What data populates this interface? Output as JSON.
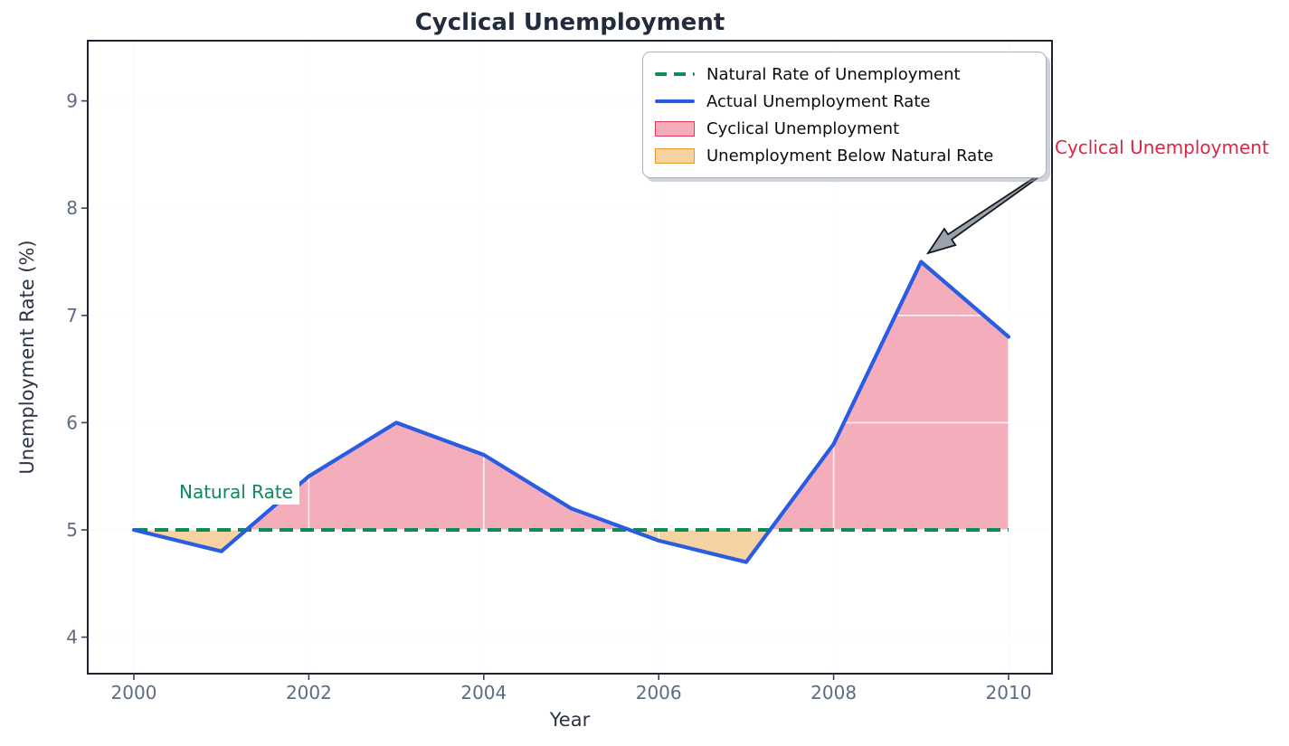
{
  "title": "Cyclical Unemployment",
  "chart_data": {
    "type": "line",
    "x": [
      2000,
      2001,
      2002,
      2003,
      2004,
      2005,
      2006,
      2007,
      2008,
      2009,
      2010
    ],
    "series": [
      {
        "name": "Natural Rate of Unemployment",
        "values": [
          5.0,
          5.0,
          5.0,
          5.0,
          5.0,
          5.0,
          5.0,
          5.0,
          5.0,
          5.0,
          5.0
        ],
        "style": "dashed",
        "color": "#0e8a57"
      },
      {
        "name": "Actual Unemployment Rate",
        "values": [
          5.0,
          4.8,
          5.5,
          6.0,
          5.7,
          5.2,
          4.9,
          4.7,
          5.8,
          7.5,
          6.8
        ],
        "style": "solid",
        "color": "#2a5ce2"
      }
    ],
    "natural_rate": 5.0,
    "xlabel": "Year",
    "ylabel": "Unemployment Rate (%)",
    "xticks": [
      2000,
      2002,
      2004,
      2006,
      2008,
      2010
    ],
    "yticks": [
      4,
      5,
      6,
      7,
      8,
      9
    ],
    "xlim": [
      1999.47,
      2010.5
    ],
    "ylim": [
      3.66,
      9.56
    ],
    "grid": true,
    "legend_position": "upper right",
    "fill_regions": [
      {
        "name": "Cyclical Unemployment",
        "condition": "actual > natural",
        "fill": "rgba(220,20,60,0.35)"
      },
      {
        "name": "Unemployment Below Natural Rate",
        "condition": "actual < natural",
        "fill": "rgba(230,142,23,0.40)"
      }
    ]
  },
  "legend": {
    "items": [
      {
        "label": "Natural Rate of Unemployment",
        "swatch": "green-dashed-line"
      },
      {
        "label": "Actual Unemployment Rate",
        "swatch": "blue-solid-line"
      },
      {
        "label": "Cyclical Unemployment",
        "swatch": "pink-patch"
      },
      {
        "label": "Unemployment Below Natural Rate",
        "swatch": "orange-patch"
      }
    ]
  },
  "annotations": {
    "cyclical": {
      "text": "Cyclical Unemployment",
      "color": "#dc2646",
      "arrow_target_year": 2009,
      "arrow_target_value": 7.5
    },
    "natural": {
      "text": "Natural Rate",
      "color": "#0e8a57"
    }
  },
  "colors": {
    "actual_line": "#2a5ce2",
    "natural_line": "#0e8a57",
    "cyclical_fill": "rgba(220,20,60,0.35)",
    "below_natural_fill": "rgba(230,142,23,0.40)",
    "annotation_text": "#dc2646",
    "title_text": "#222c3c",
    "tick_text": "#5d6b84",
    "spine": "#1c2430"
  }
}
